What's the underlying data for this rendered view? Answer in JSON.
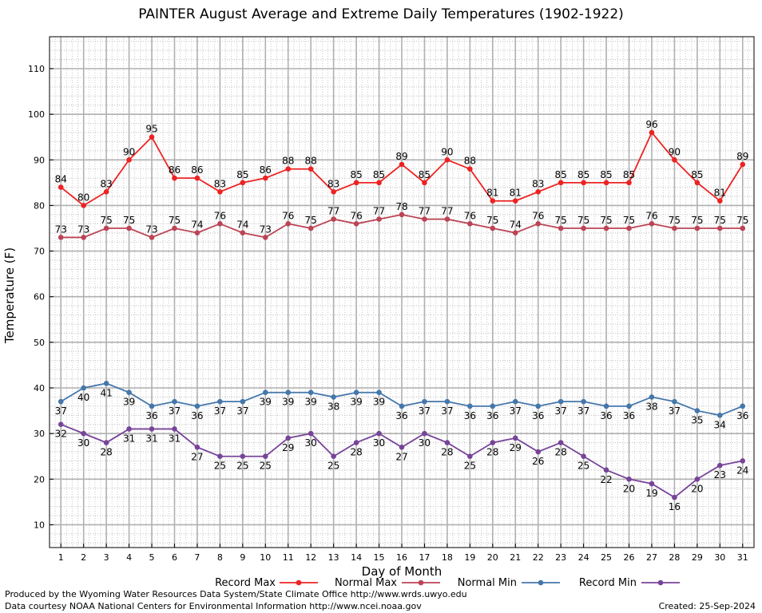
{
  "chart_data": {
    "type": "line",
    "title": "PAINTER August Average and Extreme Daily Temperatures (1902-1922)",
    "xlabel": "Day of Month",
    "ylabel": "Temperature (F)",
    "x": [
      1,
      2,
      3,
      4,
      5,
      6,
      7,
      8,
      9,
      10,
      11,
      12,
      13,
      14,
      15,
      16,
      17,
      18,
      19,
      20,
      21,
      22,
      23,
      24,
      25,
      26,
      27,
      28,
      29,
      30,
      31
    ],
    "xlim": [
      0.5,
      31.5
    ],
    "ylim": [
      5,
      117
    ],
    "yticks": [
      10,
      20,
      30,
      40,
      50,
      60,
      70,
      80,
      90,
      100,
      110
    ],
    "grid": true,
    "legend_position": "bottom",
    "series": [
      {
        "name": "Record Max",
        "color": "#ee2222",
        "values": [
          84,
          80,
          83,
          90,
          95,
          86,
          86,
          83,
          85,
          86,
          88,
          88,
          83,
          85,
          85,
          89,
          85,
          90,
          88,
          81,
          81,
          83,
          85,
          85,
          85,
          85,
          96,
          90,
          85,
          81,
          89
        ],
        "label_position": "above"
      },
      {
        "name": "Normal Max",
        "color": "#bb4455",
        "values": [
          73,
          73,
          75,
          75,
          73,
          75,
          74,
          76,
          74,
          73,
          76,
          75,
          77,
          76,
          77,
          78,
          77,
          77,
          76,
          75,
          74,
          76,
          75,
          75,
          75,
          75,
          76,
          75,
          75,
          75,
          75
        ],
        "label_position": "above"
      },
      {
        "name": "Normal Min",
        "color": "#4477aa",
        "values": [
          37,
          40,
          41,
          39,
          36,
          37,
          36,
          37,
          37,
          39,
          39,
          39,
          38,
          39,
          39,
          36,
          37,
          37,
          36,
          36,
          37,
          36,
          37,
          37,
          36,
          36,
          38,
          37,
          35,
          34,
          36
        ],
        "label_position": "below"
      },
      {
        "name": "Record Min",
        "color": "#774499",
        "values": [
          32,
          30,
          28,
          31,
          31,
          31,
          27,
          25,
          25,
          25,
          29,
          30,
          25,
          28,
          30,
          27,
          30,
          28,
          25,
          28,
          29,
          26,
          28,
          25,
          22,
          20,
          19,
          16,
          20,
          23,
          24
        ],
        "label_position": "below"
      }
    ]
  },
  "footer": {
    "produced_by": "Produced by the Wyoming Water Resources Data System/State Climate Office http://www.wrds.uwyo.edu",
    "data_courtesy": "Data courtesy NOAA National Centers for Environmental Information http://www.ncei.noaa.gov",
    "created": "Created:  25-Sep-2024"
  }
}
